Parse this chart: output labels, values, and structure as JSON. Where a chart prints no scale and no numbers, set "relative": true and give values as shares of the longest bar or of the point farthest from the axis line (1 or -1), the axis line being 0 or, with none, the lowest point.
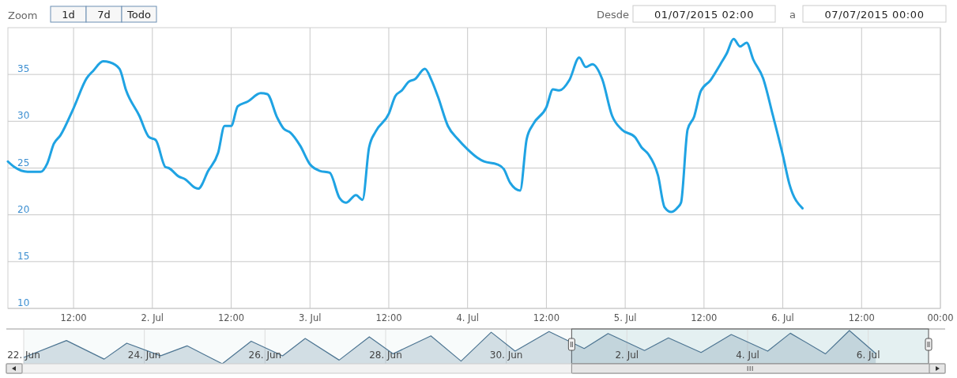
{
  "chart_data": [
    {
      "type": "line",
      "annotations": [
        "Zoom",
        "1d",
        "7d",
        "Todo",
        "Desde",
        "01/07/2015 02:00",
        "a",
        "07/07/2015 00:00"
      ],
      "xlim": [
        "2015-07-01T02:00",
        "2015-07-07T00:00"
      ],
      "xticks": [
        {
          "value": "2015-07-01T12:00",
          "label": "12:00"
        },
        {
          "value": "2015-07-02",
          "label": "2. Jul"
        },
        {
          "value": "2015-07-02T12:00",
          "label": "12:00"
        },
        {
          "value": "2015-07-03",
          "label": "3. Jul"
        },
        {
          "value": "2015-07-03T12:00",
          "label": "12:00"
        },
        {
          "value": "2015-07-04",
          "label": "4. Jul"
        },
        {
          "value": "2015-07-04T12:00",
          "label": "12:00"
        },
        {
          "value": "2015-07-05",
          "label": "5. Jul"
        },
        {
          "value": "2015-07-05T12:00",
          "label": "12:00"
        },
        {
          "value": "2015-07-06",
          "label": "6. Jul"
        },
        {
          "value": "2015-07-06T12:00",
          "label": "12:00"
        },
        {
          "value": "2015-07-07",
          "label": "00:00"
        }
      ],
      "ylim": [
        10,
        40
      ],
      "yticks": [
        10,
        15,
        20,
        25,
        30,
        35
      ],
      "grid": true,
      "series": [
        {
          "color": "#1fa3e3",
          "x": [
            "2015-07-01T02:00",
            "2015-07-01T03:00",
            "2015-07-01T05:00",
            "2015-07-01T07:00",
            "2015-07-01T08:00",
            "2015-07-01T09:00",
            "2015-07-01T10:00",
            "2015-07-01T12:00",
            "2015-07-01T14:00",
            "2015-07-01T15:00",
            "2015-07-01T16:30",
            "2015-07-01T17:30",
            "2015-07-01T19:00",
            "2015-07-01T20:00",
            "2015-07-01T22:00",
            "2015-07-01T23:30",
            "2015-07-02T00:30",
            "2015-07-02T02:00",
            "2015-07-02T02:30",
            "2015-07-02T04:00",
            "2015-07-02T05:00",
            "2015-07-02T06:30",
            "2015-07-02T07:00",
            "2015-07-02T08:30",
            "2015-07-02T10:00",
            "2015-07-02T11:00",
            "2015-07-02T12:00",
            "2015-07-02T13:00",
            "2015-07-02T14:30",
            "2015-07-02T16:30",
            "2015-07-02T17:30",
            "2015-07-02T19:00",
            "2015-07-02T20:00",
            "2015-07-02T21:00",
            "2015-07-02T22:30",
            "2015-07-03T00:00",
            "2015-07-03T01:30",
            "2015-07-03T03:00",
            "2015-07-03T04:30",
            "2015-07-03T05:30",
            "2015-07-03T07:00",
            "2015-07-03T08:00",
            "2015-07-03T09:00",
            "2015-07-03T10:00",
            "2015-07-03T12:00",
            "2015-07-03T13:00",
            "2015-07-03T14:00",
            "2015-07-03T15:00",
            "2015-07-03T16:00",
            "2015-07-03T17:30",
            "2015-07-03T18:30",
            "2015-07-03T19:30",
            "2015-07-03T21:00",
            "2015-07-03T22:30",
            "2015-07-04T00:00",
            "2015-07-04T01:30",
            "2015-07-04T02:30",
            "2015-07-04T04:30",
            "2015-07-04T05:30",
            "2015-07-04T06:30",
            "2015-07-04T08:00",
            "2015-07-04T09:00",
            "2015-07-04T10:00",
            "2015-07-04T12:00",
            "2015-07-04T13:00",
            "2015-07-04T14:00",
            "2015-07-04T15:30",
            "2015-07-04T17:00",
            "2015-07-04T18:00",
            "2015-07-04T19:00",
            "2015-07-04T20:30",
            "2015-07-04T22:00",
            "2015-07-04T23:30",
            "2015-07-05T01:30",
            "2015-07-05T02:30",
            "2015-07-05T03:30",
            "2015-07-05T05:00",
            "2015-07-05T06:00",
            "2015-07-05T07:00",
            "2015-07-05T08:00",
            "2015-07-05T08:30",
            "2015-07-05T09:30",
            "2015-07-05T10:30",
            "2015-07-05T11:30",
            "2015-07-05T13:00",
            "2015-07-05T14:30",
            "2015-07-05T15:30",
            "2015-07-05T16:30",
            "2015-07-05T17:30",
            "2015-07-05T18:30",
            "2015-07-05T19:30",
            "2015-07-05T21:00",
            "2015-07-05T22:30",
            "2015-07-06T00:00",
            "2015-07-06T01:00",
            "2015-07-06T03:00"
          ],
          "values": [
            25.7,
            25.1,
            24.6,
            24.6,
            25.5,
            27.6,
            28.5,
            31.4,
            34.6,
            35.4,
            36.4,
            36.3,
            35.6,
            33.3,
            30.6,
            28.3,
            28.0,
            25.1,
            25.0,
            24.1,
            23.8,
            22.9,
            22.8,
            24.7,
            26.6,
            29.5,
            29.5,
            31.6,
            32.1,
            33.0,
            32.9,
            30.4,
            29.2,
            28.8,
            27.4,
            25.4,
            24.7,
            24.5,
            21.8,
            21.3,
            22.1,
            21.6,
            27.2,
            28.9,
            30.8,
            32.7,
            33.3,
            34.2,
            34.5,
            35.6,
            34.4,
            32.6,
            29.5,
            28.1,
            27.0,
            26.1,
            25.7,
            25.4,
            24.9,
            23.4,
            22.6,
            28.1,
            29.7,
            31.5,
            33.4,
            33.3,
            34.4,
            36.8,
            35.8,
            36.1,
            34.5,
            30.6,
            29.1,
            28.3,
            27.2,
            26.5,
            24.2,
            20.8,
            20.3,
            20.8,
            21.3,
            29.1,
            30.5,
            33.2,
            34.4,
            36.1,
            37.3,
            38.8,
            38.0,
            38.4,
            36.6,
            34.6,
            30.6,
            26.4,
            23.3,
            20.7
          ]
        }
      ]
    },
    {
      "type": "area",
      "relative": true,
      "grid": "x",
      "xlim": [
        "2015-06-22",
        "2015-07-07"
      ],
      "xticks": [
        {
          "value": "2015-06-22",
          "label": "22. Jun"
        },
        {
          "value": "2015-06-24",
          "label": "24. Jun"
        },
        {
          "value": "2015-06-26",
          "label": "26. Jun"
        },
        {
          "value": "2015-06-28",
          "label": "28. Jun"
        },
        {
          "value": "2015-06-30",
          "label": "30. Jun"
        },
        {
          "value": "2015-07-02",
          "label": "2. Jul"
        },
        {
          "value": "2015-07-04",
          "label": "4. Jul"
        },
        {
          "value": "2015-07-06",
          "label": "6. Jul"
        }
      ],
      "bands": [
        {
          "axis": "x",
          "from": "2015-07-01T02:00",
          "to": "2015-07-07T00:00",
          "color": "#cfe6e8"
        }
      ],
      "series": [
        {
          "color": "#4d7592",
          "x": [
            "2015-06-22T00:00",
            "2015-06-22T17:00",
            "2015-06-23T08:00",
            "2015-06-23T17:00",
            "2015-06-24T06:30",
            "2015-06-24T17:00",
            "2015-06-25T07:00",
            "2015-06-25T18:30",
            "2015-06-26T07:00",
            "2015-06-26T16:00",
            "2015-06-27T05:30",
            "2015-06-27T17:30",
            "2015-06-28T03:00",
            "2015-06-28T18:00",
            "2015-06-29T06:00",
            "2015-06-29T18:00",
            "2015-06-30T03:30",
            "2015-06-30T17:00",
            "2015-07-01T02:00",
            "2015-07-01T07:00",
            "2015-07-01T16:30",
            "2015-07-02T07:00",
            "2015-07-02T16:30",
            "2015-07-03T05:30",
            "2015-07-03T17:30",
            "2015-07-04T08:00",
            "2015-07-04T17:00",
            "2015-07-05T07:00",
            "2015-07-05T16:30",
            "2015-07-06T03:00"
          ],
          "values": [
            0.19,
            0.7,
            0.14,
            0.62,
            0.24,
            0.54,
            0,
            0.68,
            0.24,
            0.76,
            0.11,
            0.81,
            0.3,
            0.84,
            0.08,
            0.95,
            0.38,
            0.97,
            null,
            0.46,
            0.91,
            0.4,
            0.78,
            0.34,
            0.88,
            0.38,
            0.92,
            0.3,
            1,
            0.31
          ]
        }
      ]
    }
  ]
}
